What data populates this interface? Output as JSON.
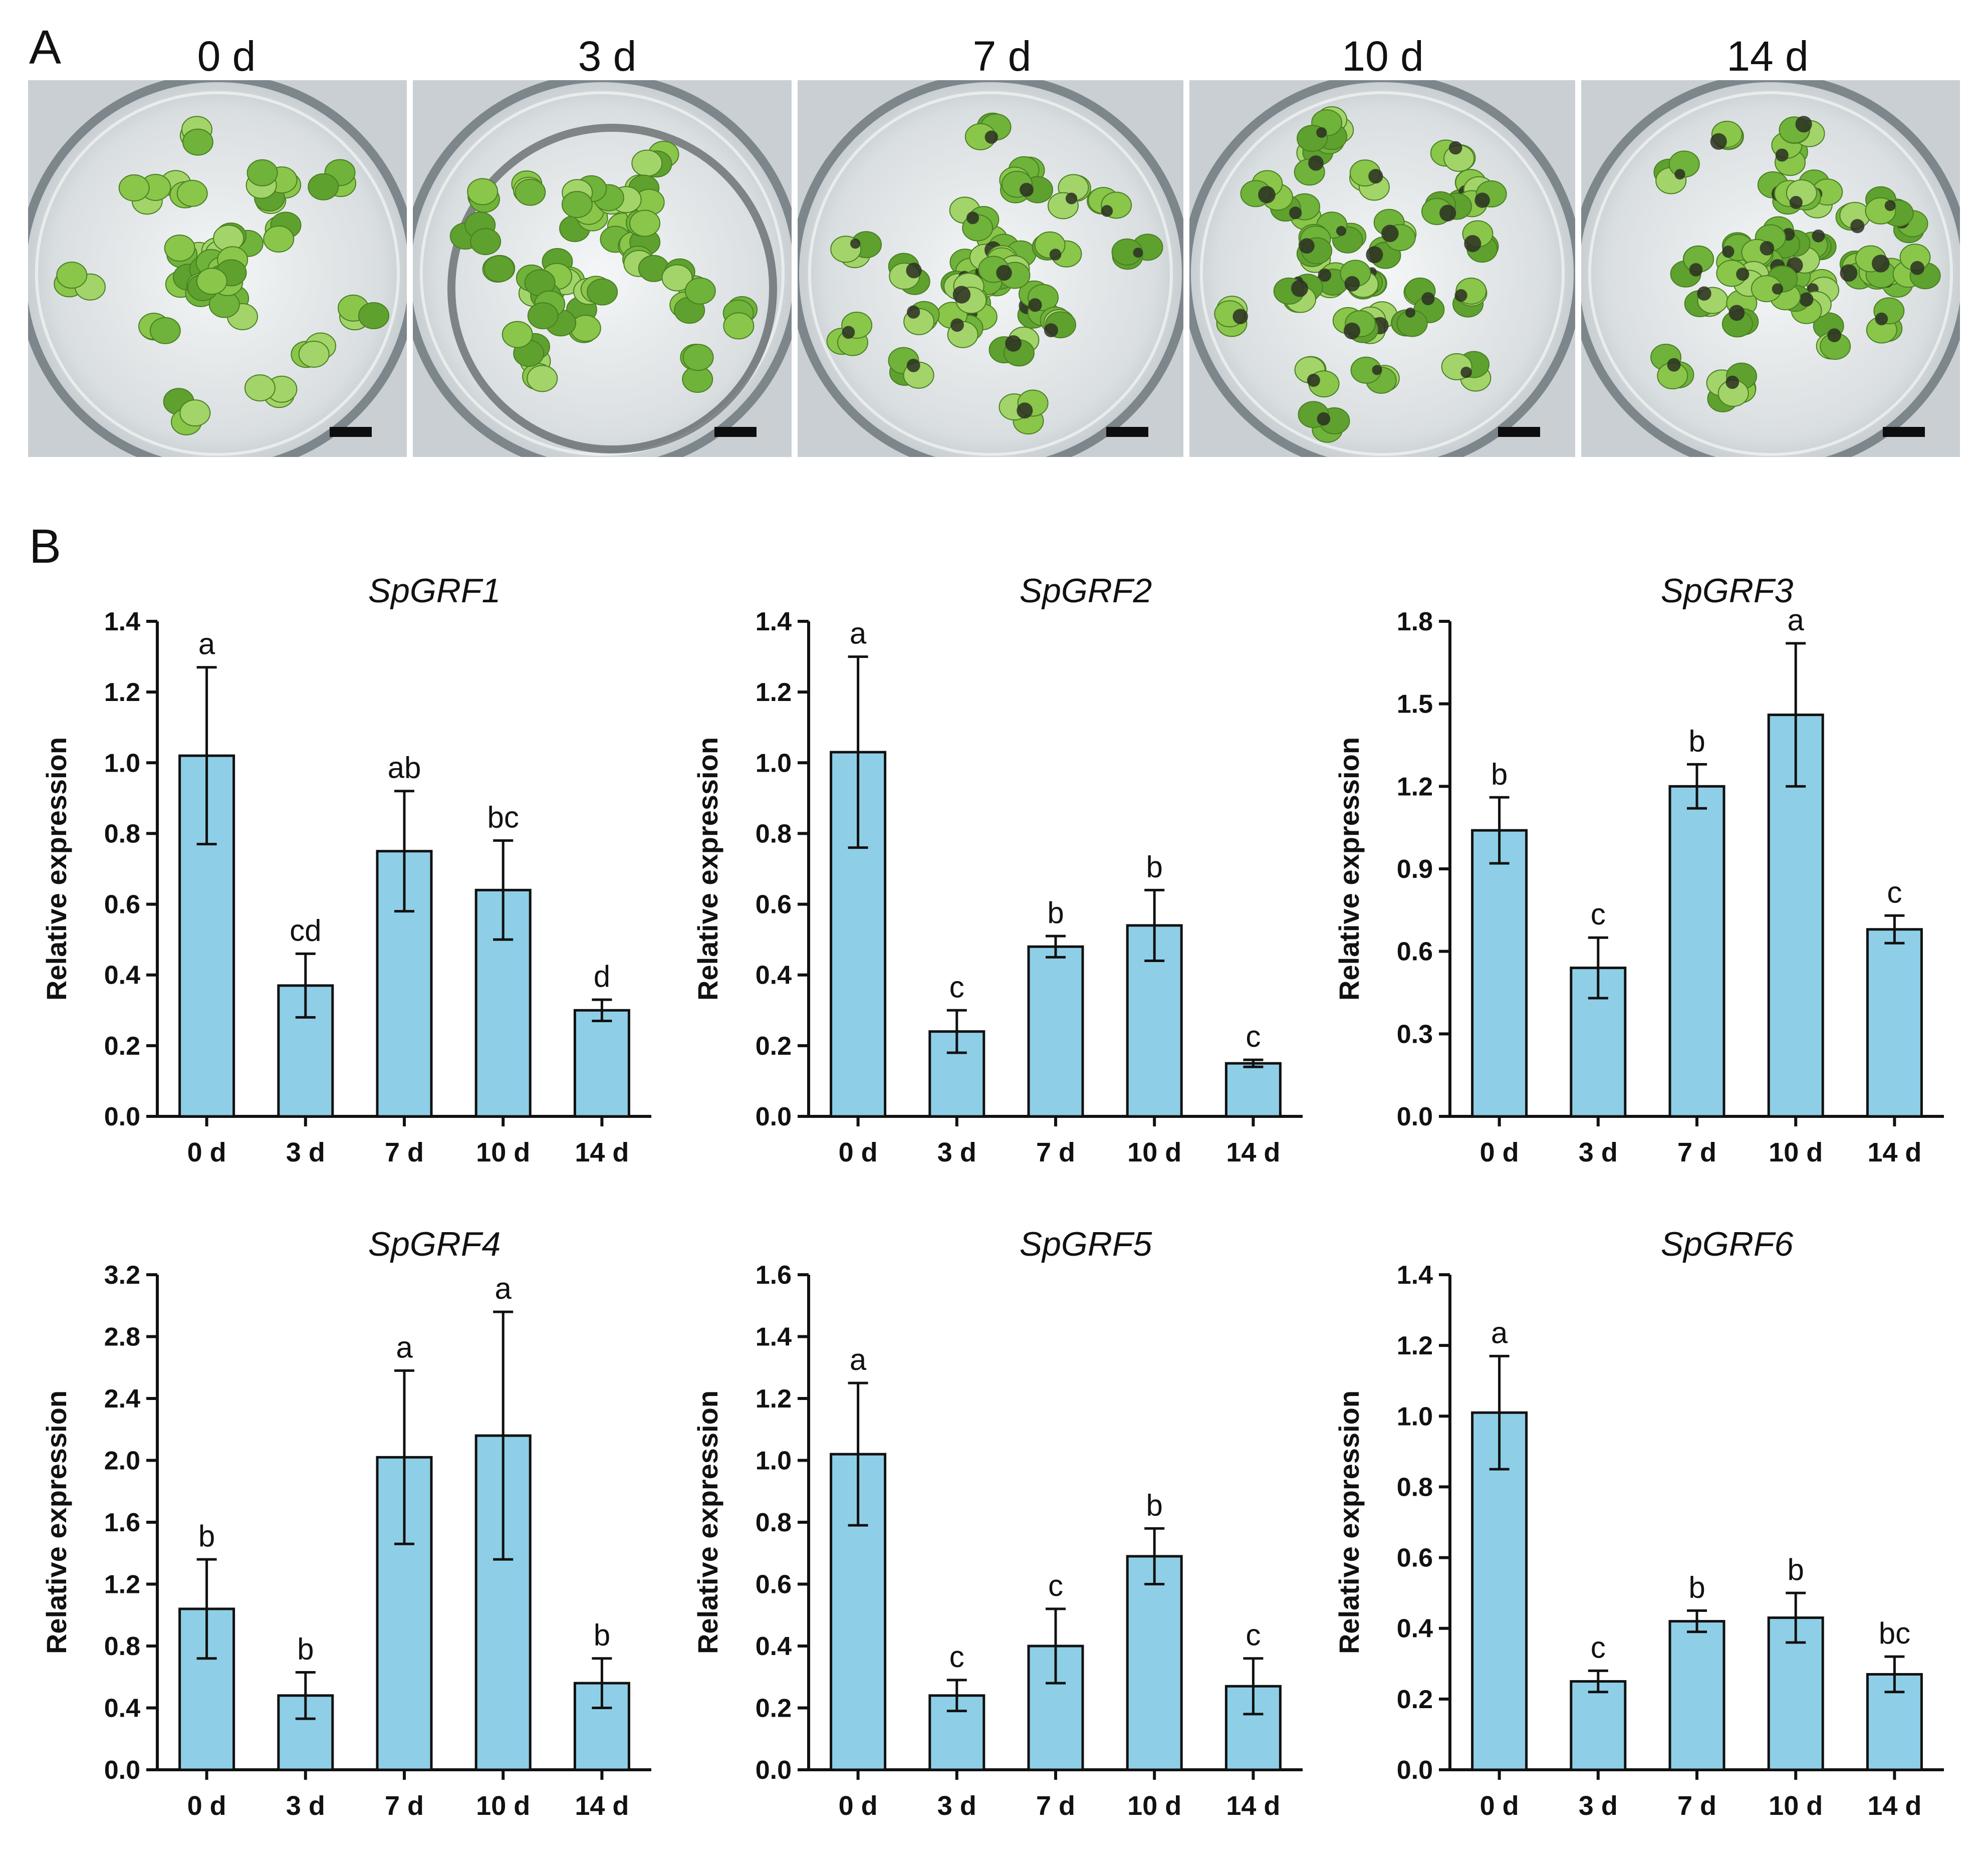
{
  "panels": {
    "a": "A",
    "b": "B"
  },
  "photos": [
    {
      "label": "0 d"
    },
    {
      "label": "3 d"
    },
    {
      "label": "7 d"
    },
    {
      "label": "10 d"
    },
    {
      "label": "14 d"
    }
  ],
  "colors": {
    "bar": "#8ecfe7",
    "axis": "#111111"
  },
  "chart_data": [
    {
      "type": "bar",
      "title": "SpGRF1",
      "ylabel": "Relative expression",
      "categories": [
        "0 d",
        "3 d",
        "7 d",
        "10 d",
        "14 d"
      ],
      "values": [
        1.02,
        0.37,
        0.75,
        0.64,
        0.3
      ],
      "errors": [
        0.25,
        0.09,
        0.17,
        0.14,
        0.03
      ],
      "letters": [
        "a",
        "cd",
        "ab",
        "bc",
        "d"
      ],
      "ylim": [
        0,
        1.4
      ],
      "yticks": [
        "0.0",
        "0.2",
        "0.4",
        "0.6",
        "0.8",
        "1.0",
        "1.2",
        "1.4"
      ]
    },
    {
      "type": "bar",
      "title": "SpGRF2",
      "ylabel": "Relative expression",
      "categories": [
        "0 d",
        "3 d",
        "7 d",
        "10 d",
        "14 d"
      ],
      "values": [
        1.03,
        0.24,
        0.48,
        0.54,
        0.15
      ],
      "errors": [
        0.27,
        0.06,
        0.03,
        0.1,
        0.01
      ],
      "letters": [
        "a",
        "c",
        "b",
        "b",
        "c"
      ],
      "ylim": [
        0,
        1.4
      ],
      "yticks": [
        "0.0",
        "0.2",
        "0.4",
        "0.6",
        "0.8",
        "1.0",
        "1.2",
        "1.4"
      ]
    },
    {
      "type": "bar",
      "title": "SpGRF3",
      "ylabel": "Relative expression",
      "categories": [
        "0 d",
        "3 d",
        "7 d",
        "10 d",
        "14 d"
      ],
      "values": [
        1.04,
        0.54,
        1.2,
        1.46,
        0.68
      ],
      "errors": [
        0.12,
        0.11,
        0.08,
        0.26,
        0.05
      ],
      "letters": [
        "b",
        "c",
        "b",
        "a",
        "c"
      ],
      "ylim": [
        0,
        1.8
      ],
      "yticks": [
        "0.0",
        "0.3",
        "0.6",
        "0.9",
        "1.2",
        "1.5",
        "1.8"
      ]
    },
    {
      "type": "bar",
      "title": "SpGRF4",
      "ylabel": "Relative expression",
      "categories": [
        "0 d",
        "3 d",
        "7 d",
        "10 d",
        "14 d"
      ],
      "values": [
        1.04,
        0.48,
        2.02,
        2.16,
        0.56
      ],
      "errors": [
        0.32,
        0.15,
        0.56,
        0.8,
        0.16
      ],
      "letters": [
        "b",
        "b",
        "a",
        "a",
        "b"
      ],
      "ylim": [
        0,
        3.2
      ],
      "yticks": [
        "0.0",
        "0.4",
        "0.8",
        "1.2",
        "1.6",
        "2.0",
        "2.4",
        "2.8",
        "3.2"
      ]
    },
    {
      "type": "bar",
      "title": "SpGRF5",
      "ylabel": "Relative expression",
      "categories": [
        "0 d",
        "3 d",
        "7 d",
        "10 d",
        "14 d"
      ],
      "values": [
        1.02,
        0.24,
        0.4,
        0.69,
        0.27
      ],
      "errors": [
        0.23,
        0.05,
        0.12,
        0.09,
        0.09
      ],
      "letters": [
        "a",
        "c",
        "c",
        "b",
        "c"
      ],
      "ylim": [
        0,
        1.6
      ],
      "yticks": [
        "0.0",
        "0.2",
        "0.4",
        "0.6",
        "0.8",
        "1.0",
        "1.2",
        "1.4",
        "1.6"
      ]
    },
    {
      "type": "bar",
      "title": "SpGRF6",
      "ylabel": "Relative expression",
      "categories": [
        "0 d",
        "3 d",
        "7 d",
        "10 d",
        "14 d"
      ],
      "values": [
        1.01,
        0.25,
        0.42,
        0.43,
        0.27
      ],
      "errors": [
        0.16,
        0.03,
        0.03,
        0.07,
        0.05
      ],
      "letters": [
        "a",
        "c",
        "b",
        "b",
        "bc"
      ],
      "ylim": [
        0,
        1.4
      ],
      "yticks": [
        "0.0",
        "0.2",
        "0.4",
        "0.6",
        "0.8",
        "1.0",
        "1.2",
        "1.4"
      ]
    }
  ]
}
